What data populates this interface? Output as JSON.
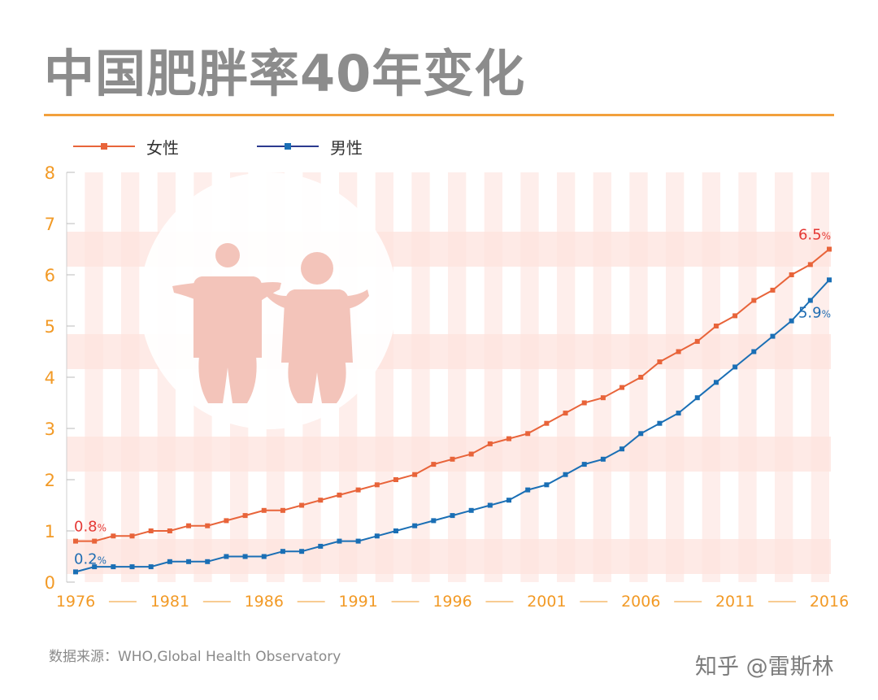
{
  "title": "中国肥胖率40年变化",
  "source": "数据来源：WHO,Global Health Observatory",
  "watermark": "知乎 @雷斯林",
  "colors": {
    "title": "#8c8c8c",
    "rule": "#f2a03c",
    "axis_text": "#f29a26",
    "female": "#e8643a",
    "male": "#1a6fb5",
    "female_label": "#e53935",
    "male_label": "#1f6db3",
    "background_band": "#fde3de",
    "figure": "#f3c4ba"
  },
  "legend": [
    {
      "name": "女性",
      "color": "#e8643a"
    },
    {
      "name": "男性",
      "color": "#1a6fb5"
    }
  ],
  "chart_data": {
    "type": "line",
    "title": "中国肥胖率40年变化",
    "xlabel": "",
    "ylabel": "",
    "ylim": [
      0,
      8
    ],
    "yticks": [
      "0",
      "1",
      "2",
      "3",
      "4",
      "5",
      "6",
      "7",
      "8"
    ],
    "xlim": [
      1976,
      2016
    ],
    "xticks": [
      "1976",
      "1981",
      "1986",
      "1991",
      "1996",
      "2001",
      "2006",
      "2011",
      "2016"
    ],
    "x": [
      1976,
      1977,
      1978,
      1979,
      1980,
      1981,
      1982,
      1983,
      1984,
      1985,
      1986,
      1987,
      1988,
      1989,
      1990,
      1991,
      1992,
      1993,
      1994,
      1995,
      1996,
      1997,
      1998,
      1999,
      2000,
      2001,
      2002,
      2003,
      2004,
      2005,
      2006,
      2007,
      2008,
      2009,
      2010,
      2011,
      2012,
      2013,
      2014,
      2015,
      2016
    ],
    "series": [
      {
        "name": "女性",
        "color": "#e8643a",
        "values": [
          0.8,
          0.8,
          0.9,
          0.9,
          1.0,
          1.0,
          1.1,
          1.1,
          1.2,
          1.3,
          1.4,
          1.4,
          1.5,
          1.6,
          1.7,
          1.8,
          1.9,
          2.0,
          2.1,
          2.3,
          2.4,
          2.5,
          2.7,
          2.8,
          2.9,
          3.1,
          3.3,
          3.5,
          3.6,
          3.8,
          4.0,
          4.3,
          4.5,
          4.7,
          5.0,
          5.2,
          5.5,
          5.7,
          6.0,
          6.2,
          6.5
        ]
      },
      {
        "name": "男性",
        "color": "#1a6fb5",
        "values": [
          0.2,
          0.3,
          0.3,
          0.3,
          0.3,
          0.4,
          0.4,
          0.4,
          0.5,
          0.5,
          0.5,
          0.6,
          0.6,
          0.7,
          0.8,
          0.8,
          0.9,
          1.0,
          1.1,
          1.2,
          1.3,
          1.4,
          1.5,
          1.6,
          1.8,
          1.9,
          2.1,
          2.3,
          2.4,
          2.6,
          2.9,
          3.1,
          3.3,
          3.6,
          3.9,
          4.2,
          4.5,
          4.8,
          5.1,
          5.5,
          5.9
        ]
      }
    ],
    "annotations": [
      {
        "text": "0.8",
        "unit": "%",
        "series": "女性",
        "x": 1976,
        "y": 0.8
      },
      {
        "text": "0.2",
        "unit": "%",
        "series": "男性",
        "x": 1976,
        "y": 0.2
      },
      {
        "text": "6.5",
        "unit": "%",
        "series": "女性",
        "x": 2016,
        "y": 6.5
      },
      {
        "text": "5.9",
        "unit": "%",
        "series": "男性",
        "x": 2016,
        "y": 5.9
      }
    ],
    "grid": true,
    "legend_position": "top-left"
  }
}
